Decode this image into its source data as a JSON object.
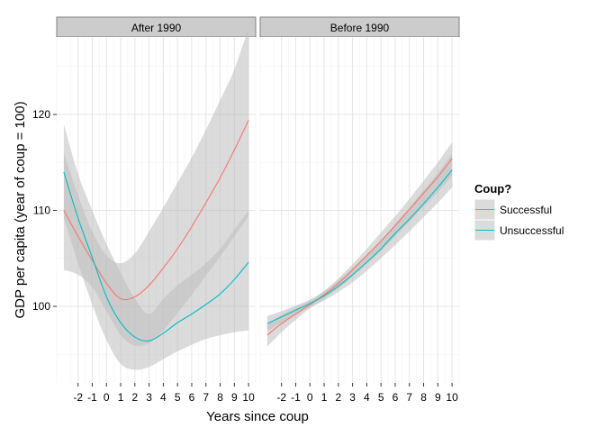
{
  "chart_data": {
    "type": "line",
    "ylabel": "GDP per capita (year of coup = 100)",
    "xlabel": "Years since coup",
    "x_ticks": [
      -2,
      -1,
      0,
      1,
      2,
      3,
      4,
      5,
      6,
      7,
      8,
      9,
      10
    ],
    "x_tick_labels": [
      "-2",
      "-1",
      "0",
      "1",
      "2",
      "3",
      "4",
      "5",
      "6",
      "7",
      "8",
      "9",
      "10"
    ],
    "xlim": [
      -3.5,
      10.5
    ],
    "y_ticks": [
      100,
      110,
      120
    ],
    "y_tick_labels": [
      "100",
      "110",
      "120"
    ],
    "ylim": [
      91.0,
      134.3
    ],
    "grid": true,
    "legend": {
      "title": "Coup?",
      "position": "right",
      "entries": [
        "Successful",
        "Unsuccessful"
      ]
    },
    "colors": {
      "Successful": "#F8766D",
      "Unsuccessful": "#00BFC4",
      "band": "#bebebe",
      "strip": "#cccccc",
      "panel_bg": "#ffffff",
      "grid_major": "#e5e5e5",
      "grid_minor": "#f2f2f2"
    },
    "panels": [
      {
        "title": "After 1990",
        "series": [
          {
            "name": "Successful",
            "x": [
              -3,
              -2,
              -1,
              0,
              1,
              2,
              3,
              4,
              5,
              6,
              7,
              8,
              9,
              10
            ],
            "y": [
              110.0,
              107.3,
              104.8,
              102.4,
              100.8,
              101.0,
              102.2,
              104.0,
              106.0,
              108.3,
              110.8,
              113.4,
              116.3,
              119.4
            ],
            "lower": [
              103.8,
              103.3,
              102.0,
              99.5,
              97.0,
              95.9,
              96.2,
              97.5,
              99.3,
              101.2,
              103.2,
              105.2,
              107.3,
              109.4
            ],
            "upper": [
              116.0,
              111.6,
              107.8,
              105.3,
              104.5,
              105.5,
              107.8,
              110.3,
              112.9,
              115.5,
              118.4,
              121.5,
              124.7,
              129.0
            ]
          },
          {
            "name": "Unsuccessful",
            "x": [
              -3,
              -2,
              -1,
              0,
              1,
              2,
              3,
              4,
              5,
              6,
              7,
              8,
              9,
              10
            ],
            "y": [
              114.0,
              109.2,
              105.1,
              101.0,
              98.3,
              96.8,
              96.4,
              97.2,
              98.3,
              99.2,
              100.2,
              101.3,
              102.8,
              104.6
            ],
            "lower": [
              109.2,
              104.5,
              100.2,
              96.5,
              94.0,
              93.4,
              93.7,
              94.5,
              95.3,
              96.0,
              96.6,
              97.0,
              97.3,
              97.5
            ],
            "upper": [
              119.0,
              113.8,
              110.0,
              106.5,
              103.5,
              100.8,
              99.2,
              100.8,
              102.2,
              103.3,
              104.5,
              106.0,
              108.0,
              110.0
            ]
          }
        ]
      },
      {
        "title": "Before 1990",
        "series": [
          {
            "name": "Successful",
            "x": [
              -3,
              -2,
              -1,
              0,
              1,
              2,
              3,
              4,
              5,
              6,
              7,
              8,
              9,
              10
            ],
            "y": [
              97.0,
              98.2,
              99.2,
              100.2,
              101.2,
              102.4,
              103.8,
              105.3,
              106.8,
              108.4,
              110.1,
              111.8,
              113.5,
              115.4
            ],
            "lower": [
              95.8,
              97.3,
              98.6,
              99.8,
              100.8,
              101.9,
              103.1,
              104.4,
              105.8,
              107.3,
              108.8,
              110.4,
              111.9,
              113.6
            ],
            "upper": [
              98.2,
              99.1,
              99.9,
              100.6,
              101.6,
              102.9,
              104.4,
              106.0,
              107.7,
              109.4,
              111.2,
              113.1,
              115.0,
              117.1
            ]
          },
          {
            "name": "Unsuccessful",
            "x": [
              -3,
              -2,
              -1,
              0,
              1,
              2,
              3,
              4,
              5,
              6,
              7,
              8,
              9,
              10
            ],
            "y": [
              98.2,
              98.9,
              99.6,
              100.3,
              101.1,
              102.1,
              103.3,
              104.6,
              106.0,
              107.6,
              109.1,
              110.7,
              112.4,
              114.2
            ],
            "lower": [
              97.4,
              98.3,
              99.1,
              99.9,
              100.6,
              101.5,
              102.5,
              103.7,
              105.0,
              106.4,
              107.8,
              109.3,
              110.8,
              112.4
            ],
            "upper": [
              99.0,
              99.5,
              100.1,
              100.7,
              101.6,
              102.7,
              104.0,
              105.4,
              106.9,
              108.6,
              110.3,
              112.1,
              113.9,
              115.9
            ]
          }
        ]
      }
    ]
  }
}
